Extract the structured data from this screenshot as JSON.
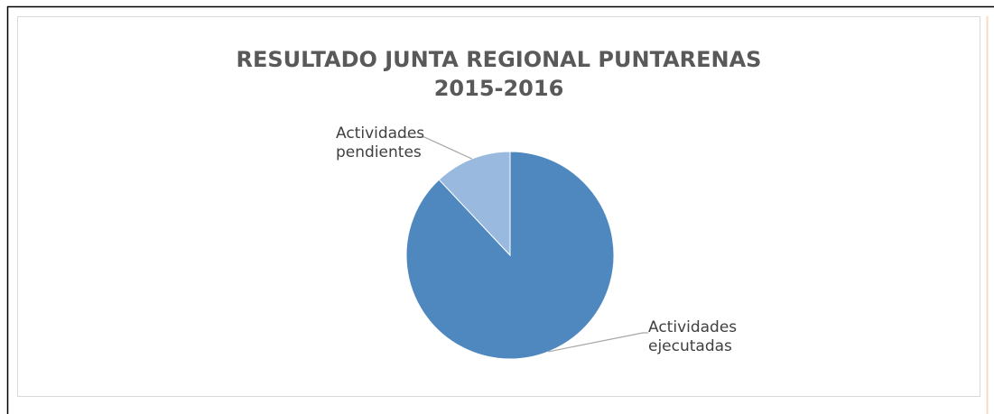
{
  "chart_data": {
    "type": "pie",
    "title": "RESULTADO JUNTA REGIONAL PUNTARENAS\n2015-2016",
    "categories": [
      "Actividades\nejecutadas",
      "Actividades\npendientes"
    ],
    "values": [
      88,
      12
    ],
    "colors": [
      "#4f88bf",
      "#9ab9df"
    ]
  }
}
